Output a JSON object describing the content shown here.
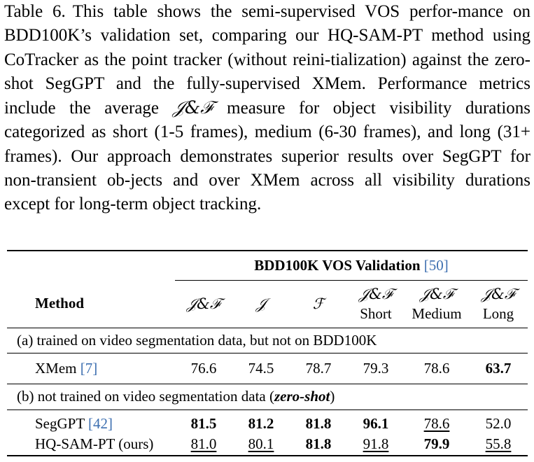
{
  "caption": {
    "label": "Table 6.",
    "text_1": "This table shows the semi-supervised VOS perfor-mance on BDD100K’s validation set, comparing our HQ-SAM-PT method using CoTracker as the point tracker (without reini-tialization) against the zero-shot SegGPT and the fully-supervised XMem. Performance metrics include the average ",
    "metric": "𝒥&ℱ",
    "text_2": " measure for object visibility durations categorized as short (1-5 frames), medium (6-30 frames), and long (31+ frames).  Our approach demonstrates superior results over SegGPT for non-transient ob-jects and over XMem across all visibility durations except for long-term object tracking."
  },
  "table": {
    "group_header": "BDD100K VOS Validation",
    "group_cite": "[50]",
    "method_header": "Method",
    "col_metrics": [
      "𝒥&ℱ",
      "𝒥",
      "ℱ",
      "𝒥&ℱ",
      "𝒥&ℱ",
      "𝒥&ℱ"
    ],
    "col_sub": [
      "",
      "",
      "",
      "Short",
      "Medium",
      "Long"
    ],
    "section_a": "(a) trained on video segmentation data, but not on BDD100K",
    "section_b_prefix": "(b) not trained on video segmentation data (",
    "section_b_em": "zero-shot",
    "section_b_suffix": ")",
    "rows": [
      {
        "method": "XMem",
        "cite": "[7]",
        "values": [
          "76.6",
          "74.5",
          "78.7",
          "79.3",
          "78.6",
          "63.7"
        ]
      },
      {
        "method": "SegGPT",
        "cite": "[42]",
        "values": [
          "81.5",
          "81.2",
          "81.8",
          "96.1",
          "78.6",
          "52.0"
        ]
      },
      {
        "method": "HQ-SAM-PT (ours)",
        "cite": "",
        "values": [
          "81.0",
          "80.1",
          "81.8",
          "91.8",
          "79.9",
          "55.8"
        ]
      }
    ]
  }
}
